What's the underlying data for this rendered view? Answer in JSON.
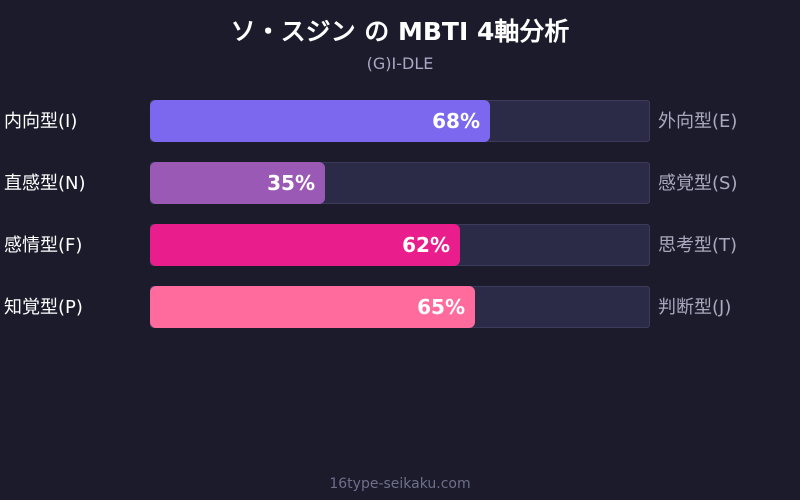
{
  "title": "ソ・スジン の MBTI 4軸分析",
  "subtitle": "(G)I-DLE",
  "footer": "16type-seikaku.com",
  "colors": {
    "background": "#1b1b2c",
    "track": "#2c2b47",
    "row1": "#7b68ee",
    "row2": "#9b59b6",
    "row3": "#e91e8c",
    "row4": "#ff6b9d"
  },
  "chart_data": {
    "type": "bar",
    "orientation": "horizontal",
    "xlim": [
      0,
      100
    ],
    "categories": [
      "内向型(I)",
      "直感型(N)",
      "感情型(F)",
      "知覚型(P)"
    ],
    "opposites": [
      "外向型(E)",
      "感覚型(S)",
      "思考型(T)",
      "判断型(J)"
    ],
    "values": [
      68,
      35,
      62,
      65
    ],
    "value_labels": [
      "68%",
      "35%",
      "62%",
      "65%"
    ]
  }
}
